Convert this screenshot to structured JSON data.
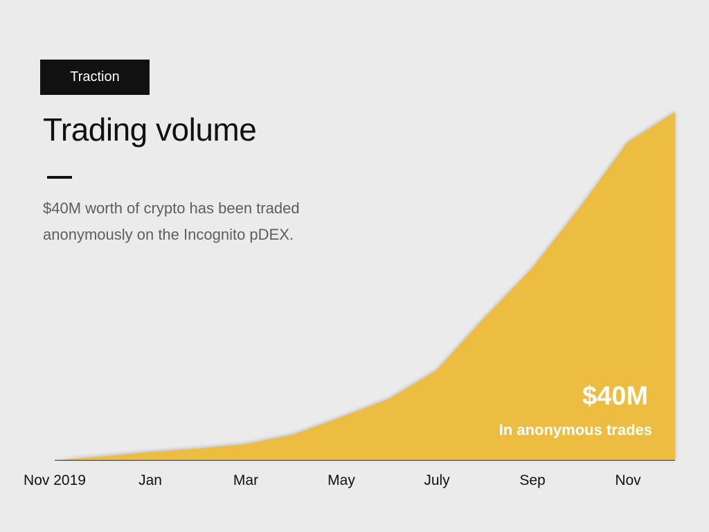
{
  "header": {
    "tag_label": "Traction",
    "title": "Trading volume",
    "description": "$40M worth of crypto has been traded anonymously on the Incognito pDEX."
  },
  "highlight": {
    "value": "$40M",
    "caption": "In anonymous trades"
  },
  "colors": {
    "background": "#ebebeb",
    "area_fill": "#edbd42",
    "text_dark": "#111111",
    "text_muted": "#5e5e5e"
  },
  "chart_data": {
    "type": "area",
    "title": "Trading volume",
    "xlabel": "",
    "ylabel": "",
    "tick_labels": [
      "Nov 2019",
      "Jan",
      "Mar",
      "May",
      "July",
      "Sep",
      "Nov"
    ],
    "x": [
      0,
      1,
      2,
      3,
      4,
      5,
      6,
      7,
      8,
      9,
      10,
      11,
      12,
      13
    ],
    "series": [
      {
        "values": [
          0,
          0.4,
          0.9,
          1.3,
          1.8,
          2.9,
          4.9,
          7.0,
          10.3,
          16.3,
          22.0,
          29.0,
          36.5,
          40.0
        ]
      }
    ],
    "ylim": [
      0,
      40
    ],
    "grid": false,
    "legend": "none"
  }
}
